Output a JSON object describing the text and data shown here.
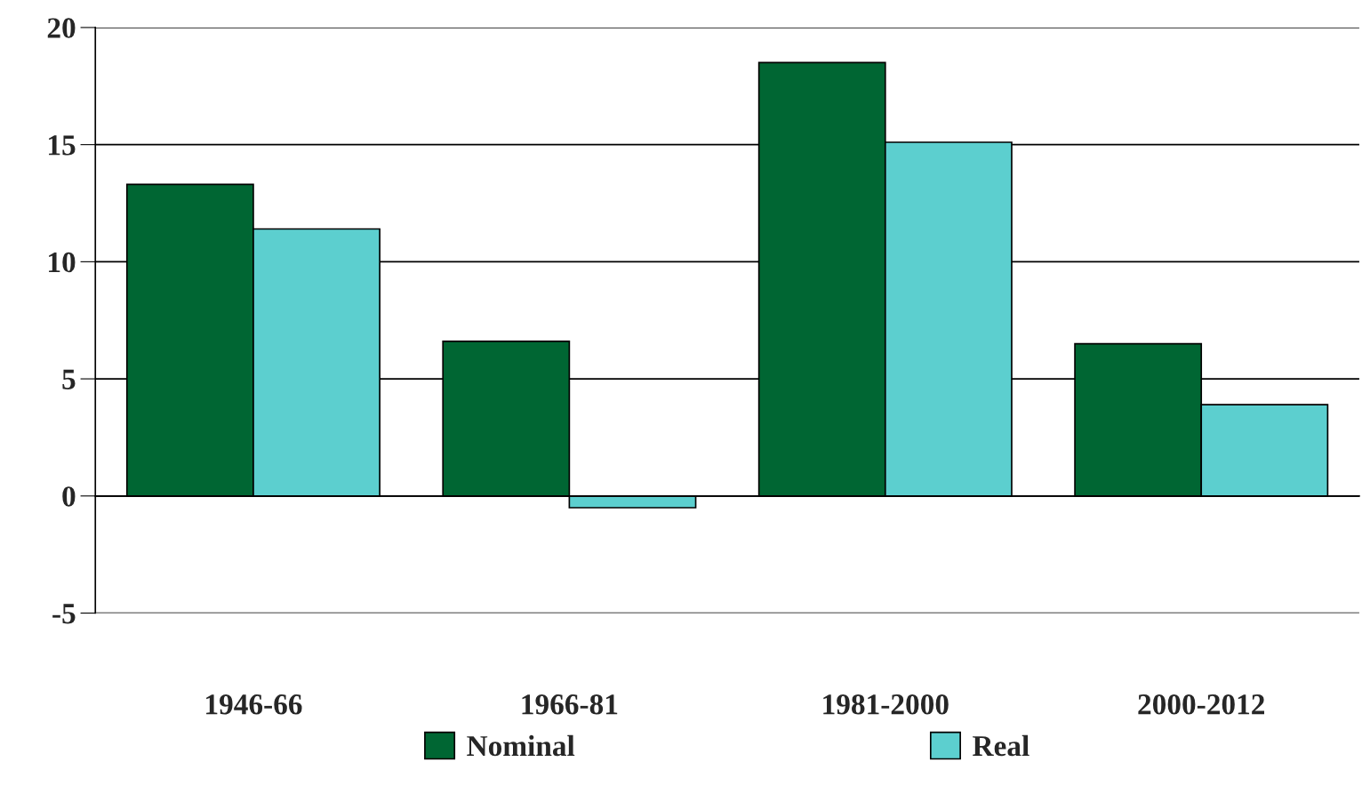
{
  "chart_data": {
    "type": "bar",
    "categories": [
      "1946-66",
      "1966-81",
      "1981-2000",
      "2000-2012"
    ],
    "series": [
      {
        "name": "Nominal",
        "color": "#006633",
        "values": [
          13.3,
          6.6,
          18.5,
          6.5
        ]
      },
      {
        "name": "Real",
        "color": "#5ccfcf",
        "values": [
          11.4,
          -0.5,
          15.1,
          3.9
        ]
      }
    ],
    "ylim": [
      -5,
      20
    ],
    "yticks": [
      -5,
      0,
      5,
      10,
      15,
      20
    ],
    "grid": "y",
    "legend": "bottom"
  }
}
